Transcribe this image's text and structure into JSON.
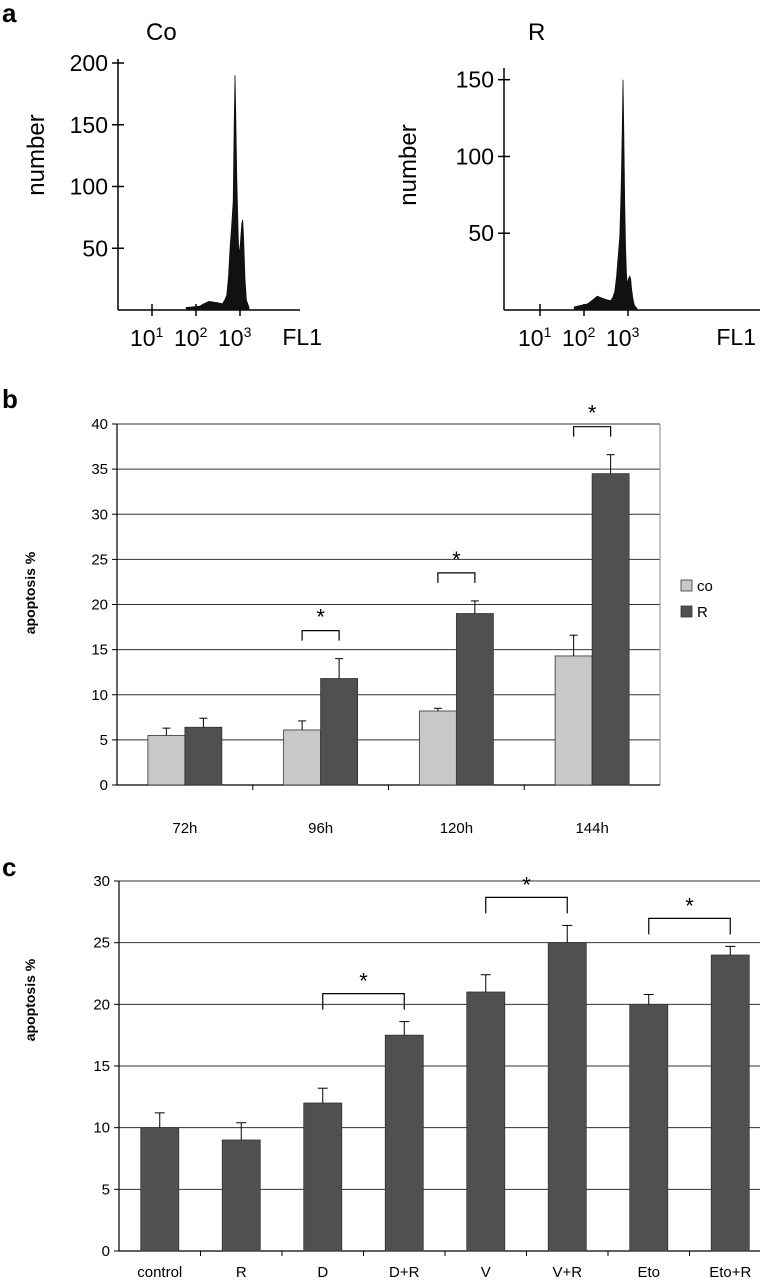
{
  "panel_labels": [
    "a",
    "b",
    "c"
  ],
  "chart_data": [
    {
      "panel": "a",
      "type": "area",
      "title": "Co",
      "xlabel": "FL1",
      "ylabel": "number",
      "x_scale": "log",
      "x_ticks": [
        "10",
        "10",
        "10"
      ],
      "x_tick_exponents": [
        "1",
        "2",
        "3"
      ],
      "x_tick_values": [
        10,
        100,
        1000
      ],
      "yticks": [
        50,
        100,
        150,
        200
      ],
      "ylim": [
        0,
        200
      ],
      "x": [
        60,
        120,
        150,
        200,
        300,
        400,
        450,
        500,
        550,
        600,
        650,
        700,
        740,
        770,
        800,
        840,
        880,
        920,
        960,
        1000,
        1050,
        1100,
        1150,
        1200,
        1300,
        1400,
        1600
      ],
      "y": [
        2,
        3,
        5,
        7,
        6,
        5,
        8,
        12,
        28,
        52,
        70,
        88,
        150,
        190,
        160,
        110,
        80,
        55,
        45,
        50,
        60,
        70,
        73,
        60,
        25,
        8,
        2
      ]
    },
    {
      "panel": "a",
      "type": "area",
      "title": "R",
      "xlabel": "FL1",
      "ylabel": "number",
      "x_scale": "log",
      "x_ticks": [
        "10",
        "10",
        "10"
      ],
      "x_tick_exponents": [
        "1",
        "2",
        "3"
      ],
      "x_tick_values": [
        10,
        100,
        1000
      ],
      "yticks": [
        50,
        100,
        150
      ],
      "ylim": [
        0,
        155
      ],
      "x": [
        60,
        120,
        150,
        200,
        300,
        400,
        450,
        500,
        550,
        600,
        650,
        700,
        740,
        770,
        800,
        840,
        880,
        920,
        960,
        1000,
        1050,
        1100,
        1150,
        1200,
        1300,
        1400,
        1600
      ],
      "y": [
        2,
        4,
        6,
        9,
        7,
        6,
        8,
        12,
        22,
        35,
        48,
        80,
        115,
        150,
        120,
        70,
        40,
        24,
        17,
        19,
        21,
        22,
        20,
        14,
        7,
        3,
        1
      ]
    },
    {
      "panel": "b",
      "type": "bar",
      "categories": [
        "72h",
        "96h",
        "120h",
        "144h"
      ],
      "series": [
        {
          "name": "co",
          "values": [
            5.5,
            6.1,
            8.2,
            14.3
          ],
          "errors": [
            0.8,
            1.0,
            0.3,
            2.3
          ],
          "color": "#c8c8c8"
        },
        {
          "name": "R",
          "values": [
            6.4,
            11.8,
            19.0,
            34.5
          ],
          "errors": [
            1.0,
            2.2,
            1.4,
            2.1
          ],
          "color": "#505050"
        }
      ],
      "ylabel": "apoptosis %",
      "ylim": [
        0,
        40
      ],
      "yticks": [
        0,
        5,
        10,
        15,
        20,
        25,
        30,
        35,
        40
      ],
      "grid": true,
      "legend_position": "right",
      "significance": [
        {
          "categories": [
            "96h"
          ],
          "label": "*"
        },
        {
          "categories": [
            "120h"
          ],
          "label": "*"
        },
        {
          "categories": [
            "144h"
          ],
          "label": "*"
        }
      ]
    },
    {
      "panel": "c",
      "type": "bar",
      "categories": [
        "control",
        "R",
        "D",
        "D+R",
        "V",
        "V+R",
        "Eto",
        "Eto+R"
      ],
      "values": [
        10.0,
        9.0,
        12.0,
        17.5,
        21.0,
        25.0,
        20.0,
        24.0
      ],
      "errors": [
        1.2,
        1.4,
        1.2,
        1.1,
        1.4,
        1.4,
        0.8,
        0.7
      ],
      "color": "#505050",
      "ylabel": "apoptosis %",
      "ylim": [
        0,
        30
      ],
      "yticks": [
        0,
        5,
        10,
        15,
        20,
        25,
        30
      ],
      "grid": true,
      "significance": [
        {
          "categories": [
            "D",
            "D+R"
          ],
          "label": "*"
        },
        {
          "categories": [
            "V",
            "V+R"
          ],
          "label": "*"
        },
        {
          "categories": [
            "Eto",
            "Eto+R"
          ],
          "label": "*"
        }
      ]
    }
  ]
}
